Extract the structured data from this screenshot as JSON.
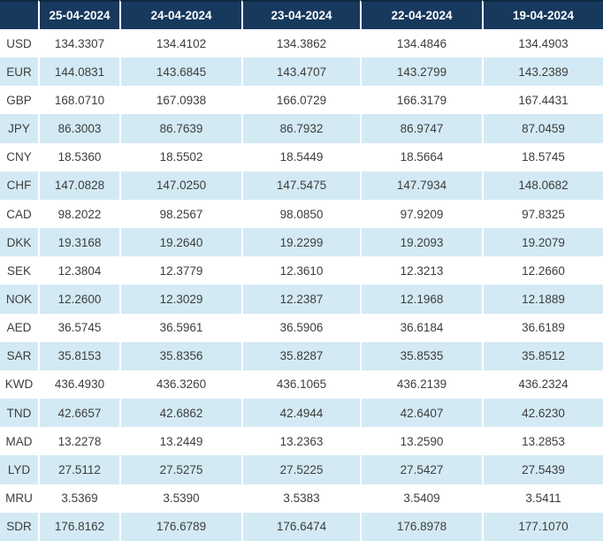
{
  "chart_data": {
    "type": "table",
    "corner_label": "",
    "columns": [
      "25-04-2024",
      "24-04-2024",
      "23-04-2024",
      "22-04-2024",
      "19-04-2024"
    ],
    "rows": [
      {
        "currency": "USD",
        "values": [
          "134.3307",
          "134.4102",
          "134.3862",
          "134.4846",
          "134.4903"
        ]
      },
      {
        "currency": "EUR",
        "values": [
          "144.0831",
          "143.6845",
          "143.4707",
          "143.2799",
          "143.2389"
        ]
      },
      {
        "currency": "GBP",
        "values": [
          "168.0710",
          "167.0938",
          "166.0729",
          "166.3179",
          "167.4431"
        ]
      },
      {
        "currency": "JPY",
        "values": [
          "86.3003",
          "86.7639",
          "86.7932",
          "86.9747",
          "87.0459"
        ]
      },
      {
        "currency": "CNY",
        "values": [
          "18.5360",
          "18.5502",
          "18.5449",
          "18.5664",
          "18.5745"
        ]
      },
      {
        "currency": "CHF",
        "values": [
          "147.0828",
          "147.0250",
          "147.5475",
          "147.7934",
          "148.0682"
        ]
      },
      {
        "currency": "CAD",
        "values": [
          "98.2022",
          "98.2567",
          "98.0850",
          "97.9209",
          "97.8325"
        ]
      },
      {
        "currency": "DKK",
        "values": [
          "19.3168",
          "19.2640",
          "19.2299",
          "19.2093",
          "19.2079"
        ]
      },
      {
        "currency": "SEK",
        "values": [
          "12.3804",
          "12.3779",
          "12.3610",
          "12.3213",
          "12.2660"
        ]
      },
      {
        "currency": "NOK",
        "values": [
          "12.2600",
          "12.3029",
          "12.2387",
          "12.1968",
          "12.1889"
        ]
      },
      {
        "currency": "AED",
        "values": [
          "36.5745",
          "36.5961",
          "36.5906",
          "36.6184",
          "36.6189"
        ]
      },
      {
        "currency": "SAR",
        "values": [
          "35.8153",
          "35.8356",
          "35.8287",
          "35.8535",
          "35.8512"
        ]
      },
      {
        "currency": "KWD",
        "values": [
          "436.4930",
          "436.3260",
          "436.1065",
          "436.2139",
          "436.2324"
        ]
      },
      {
        "currency": "TND",
        "values": [
          "42.6657",
          "42.6862",
          "42.4944",
          "42.6407",
          "42.6230"
        ]
      },
      {
        "currency": "MAD",
        "values": [
          "13.2278",
          "13.2449",
          "13.2363",
          "13.2590",
          "13.2853"
        ]
      },
      {
        "currency": "LYD",
        "values": [
          "27.5112",
          "27.5275",
          "27.5225",
          "27.5427",
          "27.5439"
        ]
      },
      {
        "currency": "MRU",
        "values": [
          "3.5369",
          "3.5390",
          "3.5383",
          "3.5409",
          "3.5411"
        ]
      },
      {
        "currency": "SDR",
        "values": [
          "176.8162",
          "176.6789",
          "176.6474",
          "176.8978",
          "177.1070"
        ]
      }
    ]
  },
  "colors": {
    "header_bg": "#17395e",
    "header_top_border": "#0d2740",
    "header_text": "#ffffff",
    "row_bg": "#ffffff",
    "row_alt_bg": "#d3eaf4",
    "cell_text": "#3d3d3d",
    "separator": "#ffffff"
  }
}
